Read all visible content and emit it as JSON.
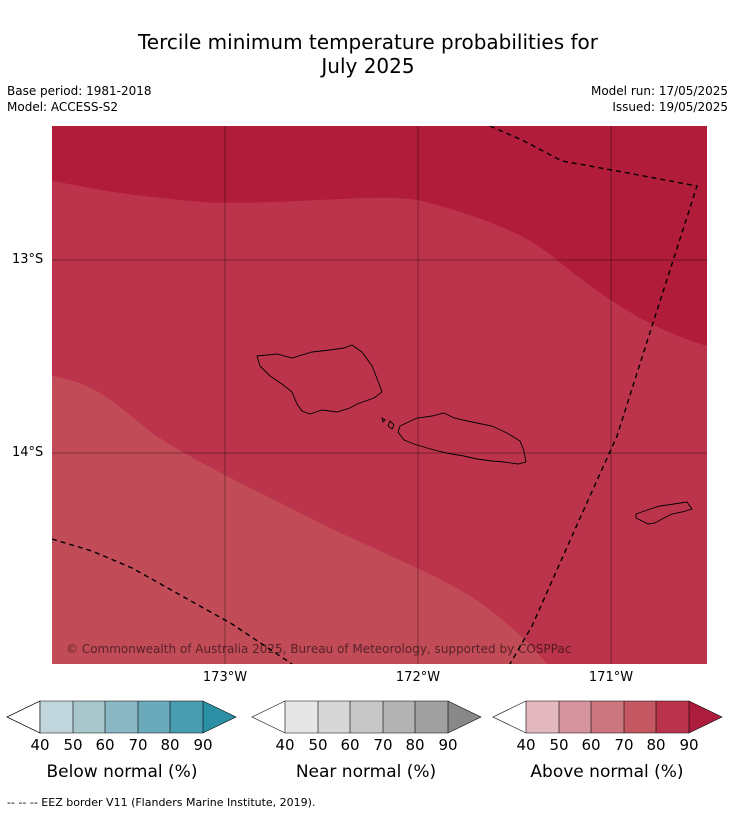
{
  "header": {
    "title_line1": "Tercile minimum temperature probabilities for",
    "title_line2": "July 2025",
    "base_period": "Base period: 1981-2018",
    "model": "Model: ACCESS-S2",
    "model_run": "Model run: 17/05/2025",
    "issued": "Issued: 19/05/2025"
  },
  "map": {
    "lat_labels": [
      "13°S",
      "14°S"
    ],
    "lon_labels": [
      "173°W",
      "172°W",
      "171°W"
    ],
    "copyright": "© Commonwealth of Australia 2025, Bureau of Meteorology, supported by COSPPac",
    "band_colors": [
      "#b01c3a",
      "#bc344c",
      "#c24b58"
    ],
    "eez_border_color": "#000000"
  },
  "colorbars": [
    {
      "label": "Below normal (%)",
      "ticks": [
        "40",
        "50",
        "60",
        "70",
        "80",
        "90"
      ],
      "colors": [
        "#c1d5dc",
        "#a7c7cd",
        "#89b7c3",
        "#6aaabb",
        "#4a9cb0",
        "#2b8fa5"
      ]
    },
    {
      "label": "Near normal (%)",
      "ticks": [
        "40",
        "50",
        "60",
        "70",
        "80",
        "90"
      ],
      "colors": [
        "#e6e6e6",
        "#d7d7d7",
        "#c7c7c7",
        "#b3b3b3",
        "#a0a0a0",
        "#888888"
      ]
    },
    {
      "label": "Above normal (%)",
      "ticks": [
        "40",
        "50",
        "60",
        "70",
        "80",
        "90"
      ],
      "colors": [
        "#e3b8be",
        "#d6959e",
        "#cc777f",
        "#c35862",
        "#bb344d",
        "#ae1c3d"
      ]
    }
  ],
  "footnote": "--  --  -- EEZ border V11 (Flanders Marine Institute, 2019)."
}
